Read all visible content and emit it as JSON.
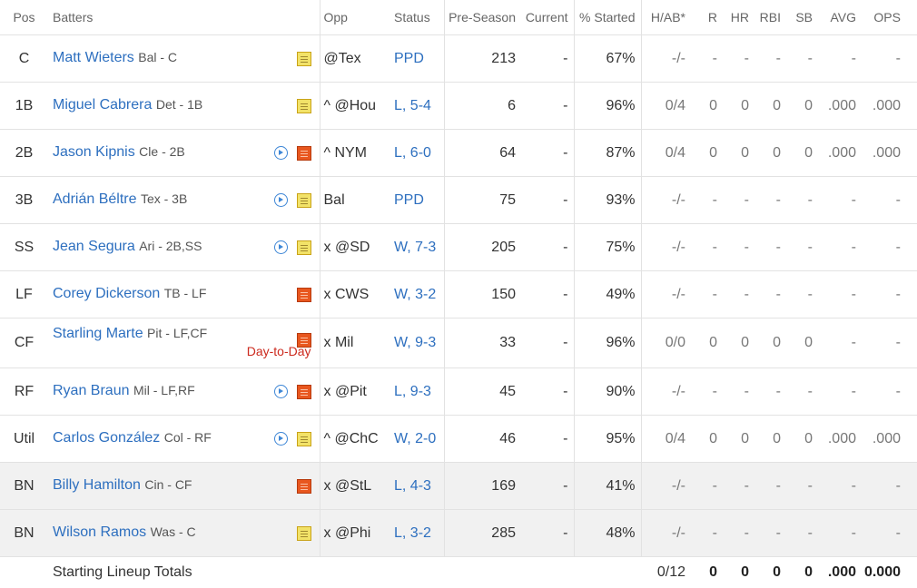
{
  "headers": {
    "pos": "Pos",
    "batters": "Batters",
    "opp": "Opp",
    "status": "Status",
    "preseason": "Pre-Season",
    "current": "Current",
    "pct_started": "% Started",
    "hab": "H/AB*",
    "r": "R",
    "hr": "HR",
    "rbi": "RBI",
    "sb": "SB",
    "avg": "AVG",
    "ops": "OPS"
  },
  "rows": [
    {
      "pos": "C",
      "name": "Matt Wieters",
      "team": "Bal - C",
      "video": false,
      "note": "yellow",
      "injury": "",
      "opp": "@Tex",
      "status": "PPD",
      "pre": "213",
      "cur": "-",
      "pct": "67%",
      "hab": "-/-",
      "r": "-",
      "hr": "-",
      "rbi": "-",
      "sb": "-",
      "avg": "-",
      "ops": "-",
      "bench": false
    },
    {
      "pos": "1B",
      "name": "Miguel Cabrera",
      "team": "Det - 1B",
      "video": false,
      "note": "yellow",
      "injury": "",
      "opp": "^ @Hou",
      "status": "L, 5-4",
      "pre": "6",
      "cur": "-",
      "pct": "96%",
      "hab": "0/4",
      "r": "0",
      "hr": "0",
      "rbi": "0",
      "sb": "0",
      "avg": ".000",
      "ops": ".000",
      "bench": false
    },
    {
      "pos": "2B",
      "name": "Jason Kipnis",
      "team": "Cle - 2B",
      "video": true,
      "note": "orange",
      "injury": "",
      "opp": "^ NYM",
      "status": "L, 6-0",
      "pre": "64",
      "cur": "-",
      "pct": "87%",
      "hab": "0/4",
      "r": "0",
      "hr": "0",
      "rbi": "0",
      "sb": "0",
      "avg": ".000",
      "ops": ".000",
      "bench": false
    },
    {
      "pos": "3B",
      "name": "Adrián Béltre",
      "team": "Tex - 3B",
      "video": true,
      "note": "yellow",
      "injury": "",
      "opp": "Bal",
      "status": "PPD",
      "pre": "75",
      "cur": "-",
      "pct": "93%",
      "hab": "-/-",
      "r": "-",
      "hr": "-",
      "rbi": "-",
      "sb": "-",
      "avg": "-",
      "ops": "-",
      "bench": false
    },
    {
      "pos": "SS",
      "name": "Jean Segura",
      "team": "Ari - 2B,SS",
      "video": true,
      "note": "yellow",
      "injury": "",
      "opp": "x @SD",
      "status": "W, 7-3",
      "pre": "205",
      "cur": "-",
      "pct": "75%",
      "hab": "-/-",
      "r": "-",
      "hr": "-",
      "rbi": "-",
      "sb": "-",
      "avg": "-",
      "ops": "-",
      "bench": false
    },
    {
      "pos": "LF",
      "name": "Corey Dickerson",
      "team": "TB - LF",
      "video": false,
      "note": "orange",
      "injury": "",
      "opp": "x CWS",
      "status": "W, 3-2",
      "pre": "150",
      "cur": "-",
      "pct": "49%",
      "hab": "-/-",
      "r": "-",
      "hr": "-",
      "rbi": "-",
      "sb": "-",
      "avg": "-",
      "ops": "-",
      "bench": false
    },
    {
      "pos": "CF",
      "name": "Starling Marte",
      "team": "Pit - LF,CF",
      "video": false,
      "note": "orange",
      "injury": "Day-to-Day",
      "opp": "x Mil",
      "status": "W, 9-3",
      "pre": "33",
      "cur": "-",
      "pct": "96%",
      "hab": "0/0",
      "r": "0",
      "hr": "0",
      "rbi": "0",
      "sb": "0",
      "avg": "-",
      "ops": "-",
      "bench": false
    },
    {
      "pos": "RF",
      "name": "Ryan Braun",
      "team": "Mil - LF,RF",
      "video": true,
      "note": "orange",
      "injury": "",
      "opp": "x @Pit",
      "status": "L, 9-3",
      "pre": "45",
      "cur": "-",
      "pct": "90%",
      "hab": "-/-",
      "r": "-",
      "hr": "-",
      "rbi": "-",
      "sb": "-",
      "avg": "-",
      "ops": "-",
      "bench": false
    },
    {
      "pos": "Util",
      "name": "Carlos González",
      "team": "Col - RF",
      "video": true,
      "note": "yellow",
      "injury": "",
      "opp": "^ @ChC",
      "status": "W, 2-0",
      "pre": "46",
      "cur": "-",
      "pct": "95%",
      "hab": "0/4",
      "r": "0",
      "hr": "0",
      "rbi": "0",
      "sb": "0",
      "avg": ".000",
      "ops": ".000",
      "bench": false
    },
    {
      "pos": "BN",
      "name": "Billy Hamilton",
      "team": "Cin - CF",
      "video": false,
      "note": "orange",
      "injury": "",
      "opp": "x @StL",
      "status": "L, 4-3",
      "pre": "169",
      "cur": "-",
      "pct": "41%",
      "hab": "-/-",
      "r": "-",
      "hr": "-",
      "rbi": "-",
      "sb": "-",
      "avg": "-",
      "ops": "-",
      "bench": true
    },
    {
      "pos": "BN",
      "name": "Wilson Ramos",
      "team": "Was - C",
      "video": false,
      "note": "yellow",
      "injury": "",
      "opp": "x @Phi",
      "status": "L, 3-2",
      "pre": "285",
      "cur": "-",
      "pct": "48%",
      "hab": "-/-",
      "r": "-",
      "hr": "-",
      "rbi": "-",
      "sb": "-",
      "avg": "-",
      "ops": "-",
      "bench": true
    }
  ],
  "totals": {
    "label": "Starting Lineup Totals",
    "hab": "0/12",
    "r": "0",
    "hr": "0",
    "rbi": "0",
    "sb": "0",
    "avg": ".000",
    "ops": "0.000"
  }
}
